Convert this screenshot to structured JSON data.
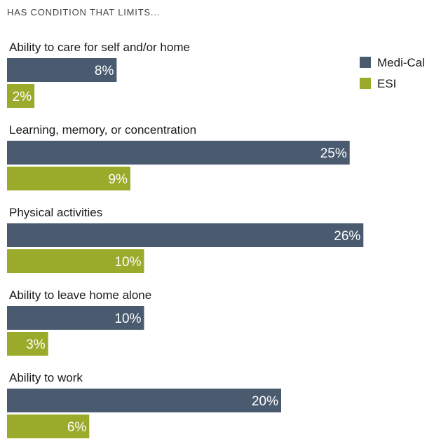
{
  "subtitle": "HAS CONDITION THAT LIMITS...",
  "colors": {
    "medi_cal": "#4a5b70",
    "esi": "#9aaa2a"
  },
  "chart_data": {
    "type": "bar",
    "orientation": "horizontal",
    "subtitle": "HAS CONDITION THAT LIMITS...",
    "categories": [
      "Ability to care for self and/or home",
      "Learning, memory, or concentration",
      "Physical activities",
      "Ability to leave home alone",
      "Ability to work"
    ],
    "series": [
      {
        "name": "Medi-Cal",
        "values": [
          8,
          25,
          26,
          10,
          20
        ],
        "labels": [
          "8%",
          "25%",
          "26%",
          "10%",
          "20%"
        ],
        "color": "#4a5b70"
      },
      {
        "name": "ESI",
        "values": [
          2,
          9,
          10,
          3,
          6
        ],
        "labels": [
          "2%",
          "9%",
          "10%",
          "3%",
          "6%"
        ],
        "color": "#9aaa2a"
      }
    ],
    "unit": "%",
    "legend": "top-right",
    "grid": false
  }
}
